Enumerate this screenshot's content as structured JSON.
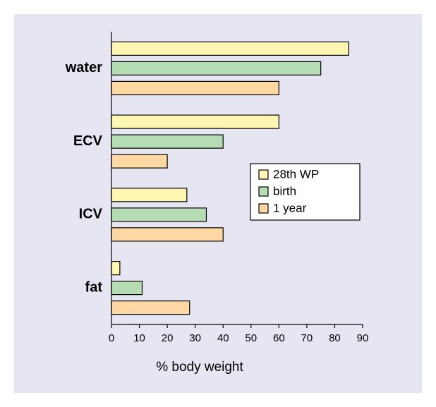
{
  "chart_data": {
    "type": "hbar",
    "categories": [
      "water",
      "ECV",
      "ICV",
      "fat"
    ],
    "series": [
      {
        "name": "28th WP",
        "color": "#fff6b4",
        "values": [
          85,
          60,
          27,
          3
        ]
      },
      {
        "name": "birth",
        "color": "#b6dcb4",
        "values": [
          75,
          40,
          34,
          11
        ]
      },
      {
        "name": "1 year",
        "color": "#fdd8a2",
        "values": [
          60,
          20,
          40,
          28
        ]
      }
    ],
    "x_label": "% body weight",
    "xlim": [
      0,
      90
    ],
    "xticks": [
      0,
      10,
      20,
      30,
      40,
      50,
      60,
      70,
      80,
      90
    ],
    "legend_position": "right"
  }
}
